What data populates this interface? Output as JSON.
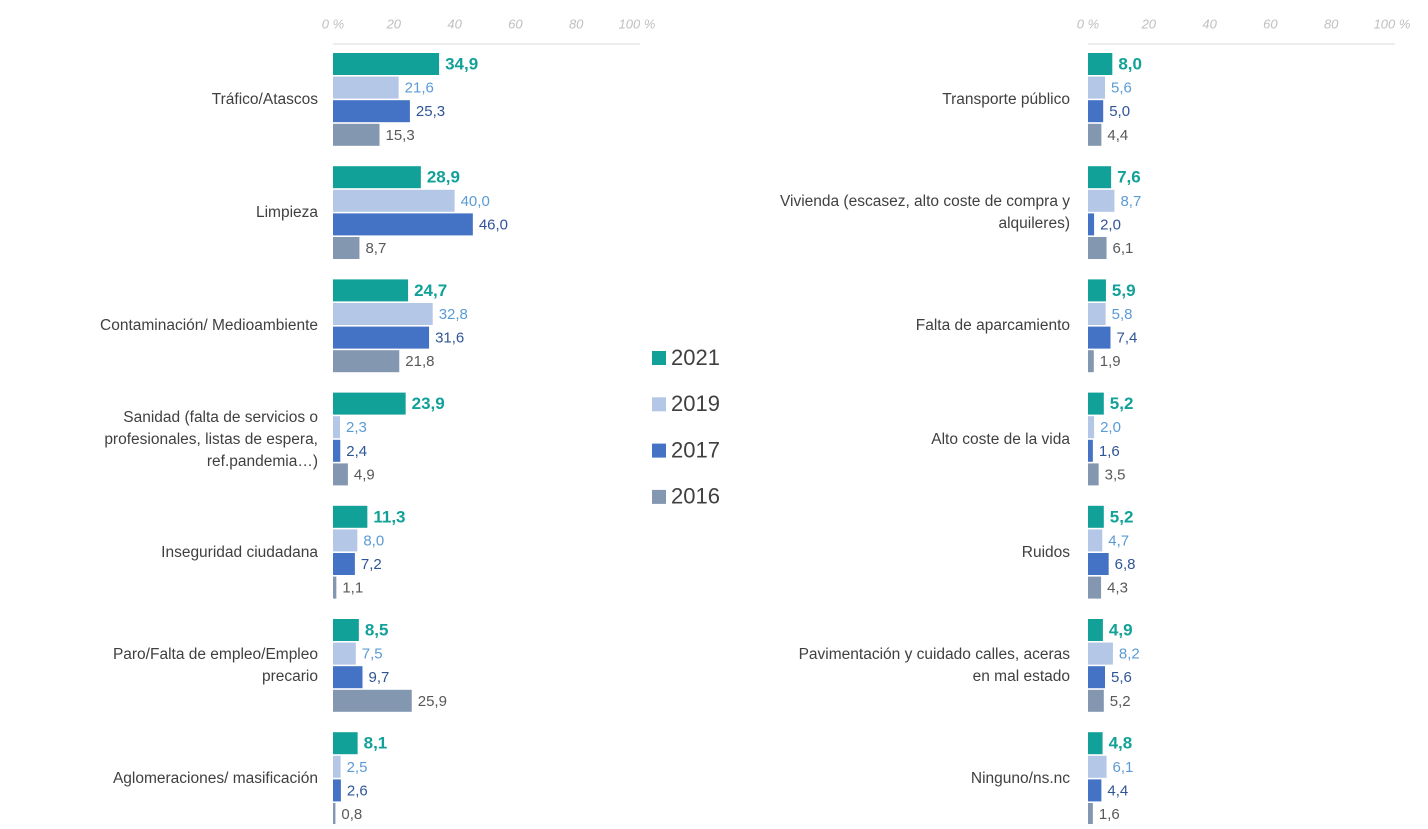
{
  "chart_data": [
    {
      "type": "bar",
      "orientation": "horizontal",
      "categories": [
        "Tráfico/Atascos",
        "Limpieza",
        "Contaminación/ Medioambiente",
        "Sanidad (falta de servicios o profesionales, listas de espera, ref.pandemia…)",
        "Inseguridad ciudadana",
        "Paro/Falta de empleo/Empleo precario",
        "Aglomeraciones/ masificación"
      ],
      "series": [
        {
          "name": "2021",
          "color": "#12a199",
          "label_color": "#12a199",
          "values": [
            34.9,
            28.9,
            24.7,
            23.9,
            11.3,
            8.5,
            8.1
          ],
          "value_labels": [
            "34,9",
            "28,9",
            "24,7",
            "23,9",
            "11,3",
            "8,5",
            "8,1"
          ]
        },
        {
          "name": "2019",
          "color": "#b4c7e7",
          "label_color": "#5b9bd5",
          "values": [
            21.6,
            40.0,
            32.8,
            2.3,
            8.0,
            7.5,
            2.5
          ],
          "value_labels": [
            "21,6",
            "40,0",
            "32,8",
            "2,3",
            "8,0",
            "7,5",
            "2,5"
          ]
        },
        {
          "name": "2017",
          "color": "#4472c4",
          "label_color": "#2f5597",
          "values": [
            25.3,
            46.0,
            31.6,
            2.4,
            7.2,
            9.7,
            2.6
          ],
          "value_labels": [
            "25,3",
            "46,0",
            "31,6",
            "2,4",
            "7,2",
            "9,7",
            "2,6"
          ]
        },
        {
          "name": "2016",
          "color": "#8497b0",
          "label_color": "#595959",
          "values": [
            15.3,
            8.7,
            21.8,
            4.9,
            1.1,
            25.9,
            0.8
          ],
          "value_labels": [
            "15,3",
            "8,7",
            "21,8",
            "4,9",
            "1,1",
            "25,9",
            "0,8"
          ]
        }
      ],
      "xlim": [
        0,
        100
      ],
      "xticks": [
        {
          "value": 0,
          "label": "0 %"
        },
        20,
        40,
        60,
        80,
        {
          "value": 100,
          "label": "100 %"
        }
      ]
    },
    {
      "type": "bar",
      "orientation": "horizontal",
      "categories": [
        "Transporte público",
        "Vivienda (escasez, alto coste de compra y alquileres)",
        "Falta de aparcamiento",
        "Alto coste de la vida",
        "Ruidos",
        "Pavimentación y cuidado calles, aceras en mal estado",
        "Ninguno/ns.nc"
      ],
      "series": [
        {
          "color": "#12a199",
          "label_color": "#12a199",
          "values": [
            8.0,
            7.6,
            5.9,
            5.2,
            5.2,
            4.9,
            4.8
          ],
          "value_labels": [
            "8,0",
            "7,6",
            "5,9",
            "5,2",
            "5,2",
            "4,9",
            "4,8"
          ]
        },
        {
          "color": "#b4c7e7",
          "label_color": "#5b9bd5",
          "values": [
            5.6,
            8.7,
            5.8,
            2.0,
            4.7,
            8.2,
            6.1
          ],
          "value_labels": [
            "5,6",
            "8,7",
            "5,8",
            "2,0",
            "4,7",
            "8,2",
            "6,1"
          ]
        },
        {
          "color": "#4472c4",
          "label_color": "#2f5597",
          "values": [
            5.0,
            2.0,
            7.4,
            1.6,
            6.8,
            5.6,
            4.4
          ],
          "value_labels": [
            "5,0",
            "2,0",
            "7,4",
            "1,6",
            "6,8",
            "5,6",
            "4,4"
          ]
        },
        {
          "color": "#8497b0",
          "label_color": "#595959",
          "values": [
            4.4,
            6.1,
            1.9,
            3.5,
            4.3,
            5.2,
            1.6
          ],
          "value_labels": [
            "4,4",
            "6,1",
            "1,9",
            "3,5",
            "4,3",
            "5,2",
            "1,6"
          ]
        }
      ],
      "xlim": [
        0,
        100
      ],
      "xticks": [
        {
          "value": 0,
          "label": "0 %"
        },
        20,
        40,
        60,
        80,
        {
          "value": 100,
          "label": "100 %"
        }
      ]
    }
  ]
}
